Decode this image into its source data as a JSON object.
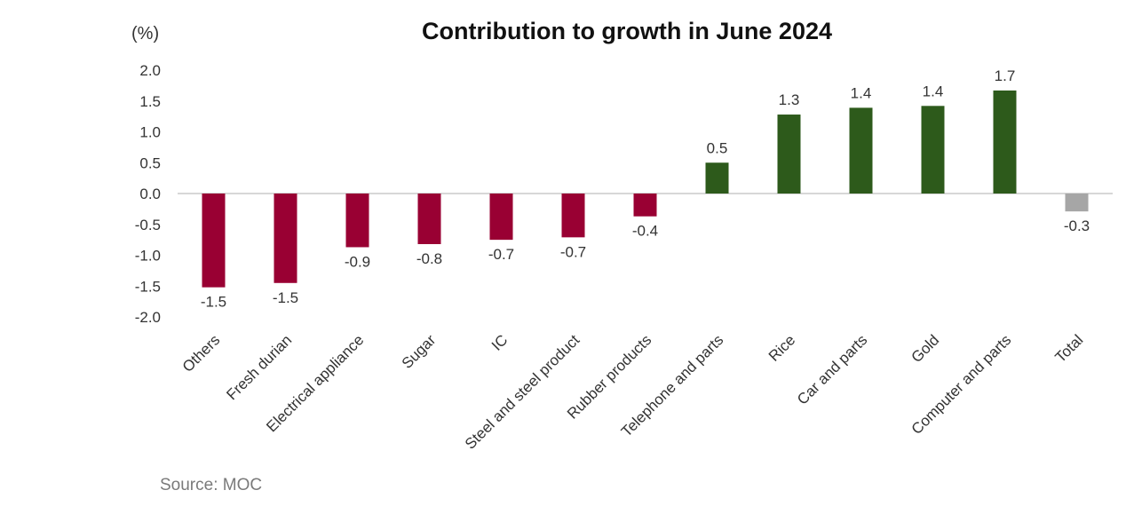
{
  "chart_data": {
    "type": "bar",
    "title": "Contribution to growth in June 2024",
    "unit": "(%)",
    "source": "Source: MOC",
    "categories": [
      "Others",
      "Fresh durian",
      "Electrical appliance",
      "Sugar",
      "IC",
      "Steel and steel product",
      "Rubber products",
      "Telephone and parts",
      "Rice",
      "Car and parts",
      "Gold",
      "Computer and parts",
      "Total"
    ],
    "values": [
      -1.52,
      -1.45,
      -0.87,
      -0.82,
      -0.75,
      -0.71,
      -0.37,
      0.5,
      1.28,
      1.39,
      1.42,
      1.67,
      -0.29
    ],
    "data_labels": [
      "-1.5",
      "-1.5",
      "-0.9",
      "-0.8",
      "-0.7",
      "-0.7",
      "-0.4",
      "0.5",
      "1.3",
      "1.4",
      "1.4",
      "1.7",
      "-0.3"
    ],
    "yticks": [
      "2.0",
      "1.5",
      "1.0",
      "0.5",
      "0.0",
      "-0.5",
      "-1.0",
      "-1.5",
      "-2.0"
    ],
    "ylim": [
      -2.0,
      2.0
    ],
    "grid": false,
    "legend": "none",
    "colors": {
      "negative": "#990033",
      "positive": "#2d5a1b",
      "total": "#a6a6a6"
    }
  }
}
